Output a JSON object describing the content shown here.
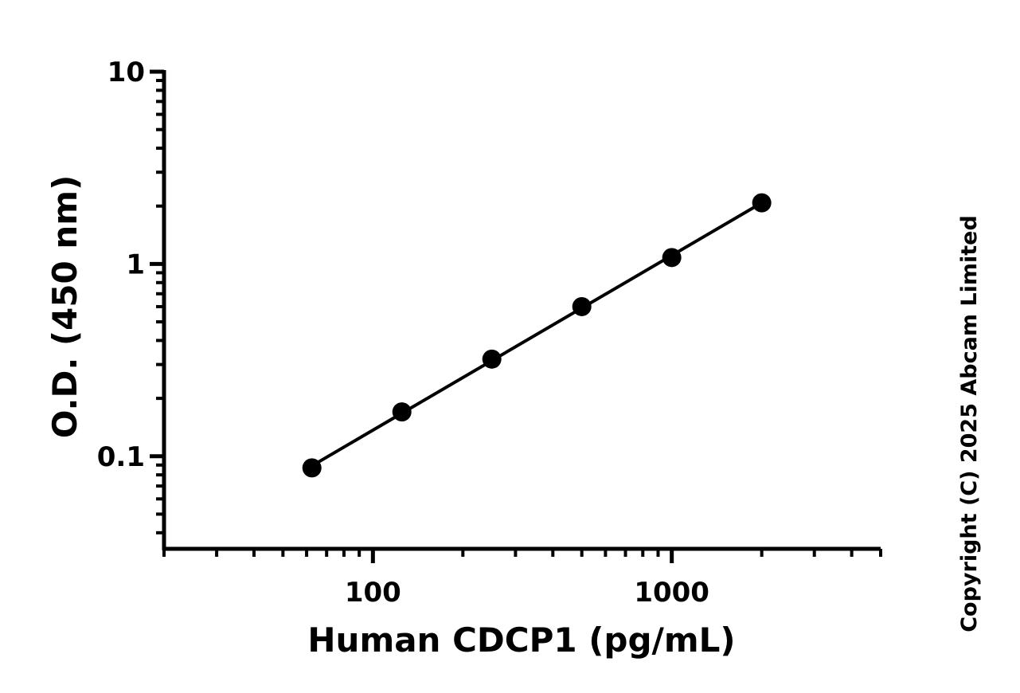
{
  "chart_data": {
    "type": "scatter",
    "xlabel": "Human CDCP1 (pg/mL)",
    "ylabel": "O.D. (450 nm)",
    "x_scale": "log",
    "y_scale": "log",
    "xlim": [
      20,
      5000
    ],
    "ylim": [
      0.033,
      10
    ],
    "x_ticks": [
      100,
      1000
    ],
    "x_tick_labels": [
      "100",
      "1000"
    ],
    "y_ticks": [
      0.1,
      1,
      10
    ],
    "y_tick_labels": [
      "0.1",
      "1",
      "10"
    ],
    "grid": false,
    "series": [
      {
        "x": [
          62.5,
          125,
          250,
          500,
          1000,
          2000
        ],
        "y": [
          0.087,
          0.17,
          0.32,
          0.6,
          1.08,
          2.08
        ],
        "fit_line": true,
        "color": "#000000"
      }
    ]
  },
  "copyright": "Copyright (C) 2025 Abcam Limited"
}
